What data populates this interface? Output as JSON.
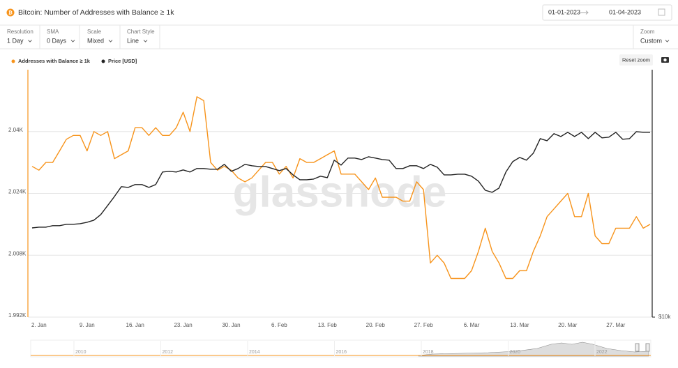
{
  "header": {
    "title": "Bitcoin: Number of Addresses with Balance ≥ 1k",
    "date_from": "01-01-2023",
    "date_to": "01-04-2023"
  },
  "controls": [
    {
      "label": "Resolution",
      "value": "1 Day"
    },
    {
      "label": "SMA",
      "value": "0 Days"
    },
    {
      "label": "Scale",
      "value": "Mixed"
    },
    {
      "label": "Chart Style",
      "value": "Line"
    }
  ],
  "zoom": {
    "label": "Zoom",
    "value": "Custom"
  },
  "reset_zoom": "Reset zoom",
  "watermark": "glassnode",
  "chart_data": {
    "type": "line",
    "categories": [
      null,
      "2. Jan",
      null,
      null,
      null,
      null,
      null,
      null,
      "9. Jan",
      null,
      null,
      null,
      null,
      null,
      null,
      "16. Jan",
      null,
      null,
      null,
      null,
      null,
      null,
      "23. Jan",
      null,
      null,
      null,
      null,
      null,
      null,
      "30. Jan",
      null,
      null,
      null,
      null,
      null,
      null,
      "6. Feb",
      null,
      null,
      null,
      null,
      null,
      null,
      "13. Feb",
      null,
      null,
      null,
      null,
      null,
      null,
      "20. Feb",
      null,
      null,
      null,
      null,
      null,
      null,
      "27. Feb",
      null,
      null,
      null,
      null,
      null,
      null,
      "6. Mar",
      null,
      null,
      null,
      null,
      null,
      null,
      "13. Mar",
      null,
      null,
      null,
      null,
      null,
      null,
      "20. Mar",
      null,
      null,
      null,
      null,
      null,
      null,
      "27. Mar",
      null,
      null,
      null,
      null,
      null
    ],
    "series": [
      {
        "name": "Addresses with Balance ≥ 1k",
        "color": "#f7931a",
        "values": [
          2031,
          2030,
          2032,
          2032,
          2035,
          2038,
          2039,
          2039,
          2035,
          2040,
          2039,
          2040,
          2033,
          2034,
          2035,
          2041,
          2041,
          2039,
          2041,
          2039,
          2039,
          2041,
          2045,
          2040,
          2049,
          2048,
          2032,
          2030,
          2031,
          2030,
          2028,
          2027,
          2028,
          2030,
          2032,
          2032,
          2029,
          2031,
          2028,
          2033,
          2032,
          2032,
          2033,
          2034,
          2035,
          2029,
          2029,
          2029,
          2027,
          2025,
          2028,
          2023,
          2023,
          2023,
          2022,
          2022,
          2027,
          2025,
          2006,
          2008,
          2006,
          2002,
          2002,
          2002,
          2004,
          2009,
          2015,
          2009,
          2006,
          2002,
          2002,
          2004,
          2004,
          2009,
          2013,
          2018,
          2020,
          2022,
          2024,
          2018,
          2018,
          2024,
          2013,
          2011,
          2011,
          2015,
          2015,
          2015,
          2018,
          2015,
          2016
        ]
      },
      {
        "name": "Price [USD]",
        "color": "#222222",
        "axis": "y2",
        "values": [
          16590,
          16660,
          16660,
          16800,
          16800,
          16930,
          16930,
          16990,
          17130,
          17330,
          17890,
          18830,
          19830,
          20960,
          20870,
          21210,
          21210,
          20870,
          21210,
          22780,
          22870,
          22780,
          23050,
          22780,
          23230,
          23230,
          23140,
          23140,
          23790,
          22870,
          23230,
          23790,
          23600,
          23500,
          23500,
          23230,
          22960,
          23230,
          22410,
          21800,
          21800,
          21890,
          22240,
          22060,
          24360,
          23690,
          24650,
          24650,
          24450,
          24840,
          24650,
          24450,
          24360,
          23230,
          23230,
          23600,
          23600,
          23230,
          23790,
          23410,
          22410,
          22410,
          22500,
          22500,
          22240,
          21630,
          20540,
          20300,
          20790,
          22780,
          24160,
          24740,
          24360,
          25340,
          27530,
          27200,
          28310,
          27860,
          28540,
          27860,
          28540,
          27530,
          28540,
          27650,
          27760,
          28540,
          27430,
          27530,
          28640,
          28540,
          28540
        ]
      }
    ],
    "ylim": [
      1992,
      2056
    ],
    "yticks": [
      {
        "value": 1992,
        "label": "1.992K"
      },
      {
        "value": 2008,
        "label": "2.008K"
      },
      {
        "value": 2024,
        "label": "2.024K"
      },
      {
        "value": 2040,
        "label": "2.04K"
      }
    ],
    "y2lim": [
      10000,
      40700
    ],
    "y2ticks": [
      {
        "value": 10000,
        "label": "$10k"
      }
    ],
    "y2_log": true,
    "grid": true
  },
  "navigator": {
    "labels": [
      "2010",
      "2012",
      "2014",
      "2016",
      "2018",
      "2020",
      "2022"
    ]
  }
}
